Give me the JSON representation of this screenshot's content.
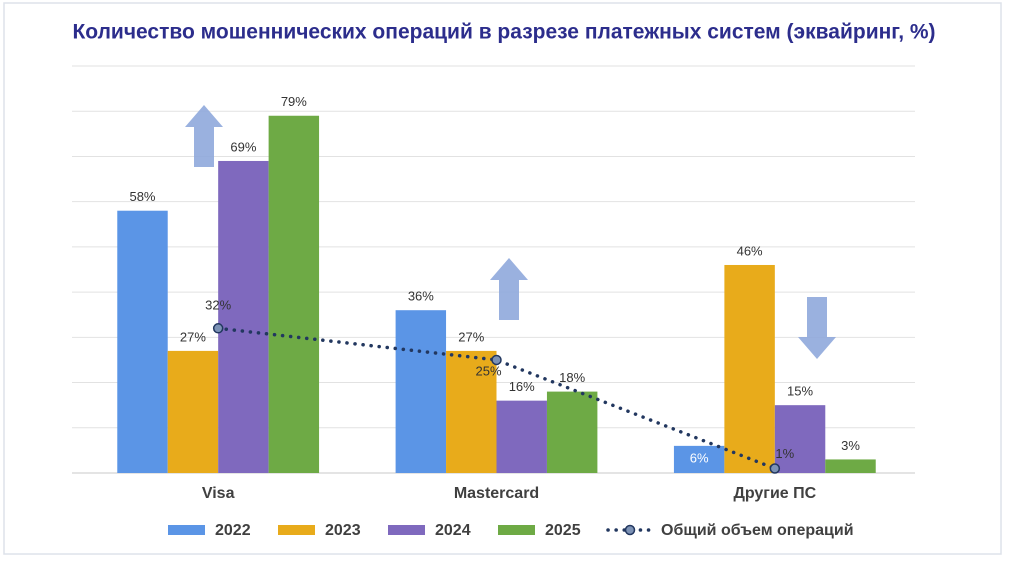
{
  "chart_data": {
    "type": "bar_line",
    "title": "Количество мошеннических операций в разрезе платежных систем (эквайринг, %)",
    "categories": [
      "Visa",
      "Mastercard",
      "Другие ПС"
    ],
    "series": [
      {
        "name": "2022",
        "color": "#5b95e6",
        "values": [
          58,
          36,
          6
        ],
        "value_labels": [
          "58%",
          "36%",
          "6%"
        ]
      },
      {
        "name": "2023",
        "color": "#e8ab1b",
        "values": [
          27,
          27,
          46
        ],
        "value_labels": [
          "27%",
          "27%",
          "46%"
        ]
      },
      {
        "name": "2024",
        "color": "#7f69be",
        "values": [
          69,
          16,
          15
        ],
        "value_labels": [
          "69%",
          "16%",
          "15%"
        ]
      },
      {
        "name": "2025",
        "color": "#6eaa45",
        "values": [
          79,
          18,
          3
        ],
        "value_labels": [
          "79%",
          "18%",
          "3%"
        ]
      },
      {
        "name": "Общий объем операций",
        "type": "line",
        "color": "#22375f",
        "marker_color": "#7c92b5",
        "values": [
          32,
          25,
          1
        ],
        "value_labels": [
          "32%",
          "25%",
          "1%"
        ]
      }
    ],
    "ylim": [
      0,
      90
    ],
    "yticks": [
      0,
      10,
      20,
      30,
      40,
      50,
      60,
      70,
      80,
      90
    ],
    "show_ytick_labels": false,
    "grid": true
  }
}
